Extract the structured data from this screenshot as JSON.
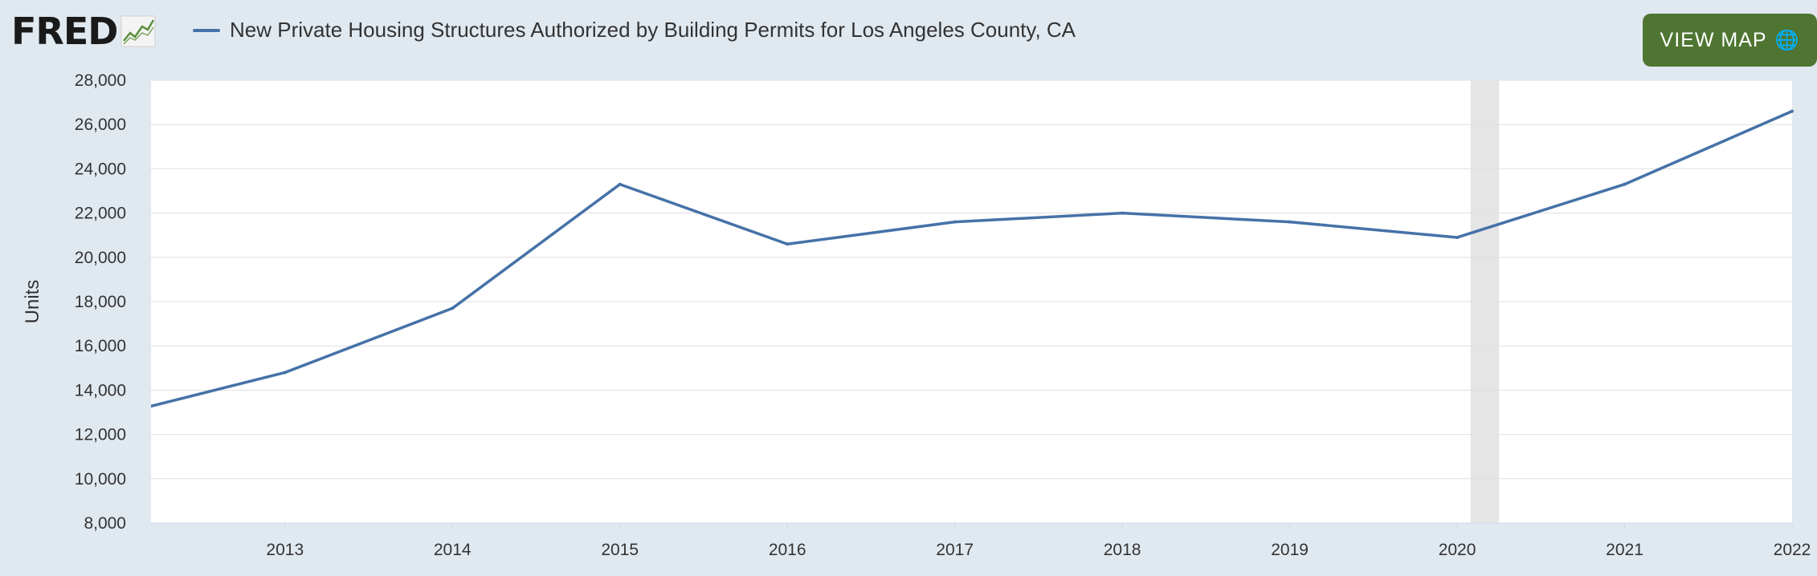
{
  "header": {
    "logo_text": "FRED",
    "legend_label": "New Private Housing Structures Authorized by Building Permits for Los Angeles County, CA",
    "map_button_label": "VIEW MAP",
    "map_button_icon": "globe-icon"
  },
  "colors": {
    "series": "#4572a7",
    "recession": "#e5e5e5",
    "button": "#4e7531",
    "background": "#e1e9f0"
  },
  "chart_data": {
    "type": "line",
    "xlabel": "",
    "ylabel": "Units",
    "ylim": [
      8000,
      28000
    ],
    "xlim": [
      2012.2,
      2022
    ],
    "grid": true,
    "legend_position": "top-left",
    "y_ticks": [
      "8,000",
      "10,000",
      "12,000",
      "14,000",
      "16,000",
      "18,000",
      "20,000",
      "22,000",
      "24,000",
      "26,000",
      "28,000"
    ],
    "x_ticks": [
      "2013",
      "2014",
      "2015",
      "2016",
      "2017",
      "2018",
      "2019",
      "2020",
      "2021",
      "2022"
    ],
    "recession_shading": [
      [
        2020.08,
        2020.25
      ]
    ],
    "series": [
      {
        "name": "New Private Housing Structures Authorized by Building Permits for Los Angeles County, CA",
        "x": [
          2012,
          2013,
          2014,
          2015,
          2016,
          2017,
          2018,
          2019,
          2020,
          2021,
          2022
        ],
        "values": [
          12900,
          14800,
          17700,
          23300,
          20600,
          21600,
          22000,
          21600,
          20900,
          23300,
          26600
        ]
      }
    ]
  }
}
